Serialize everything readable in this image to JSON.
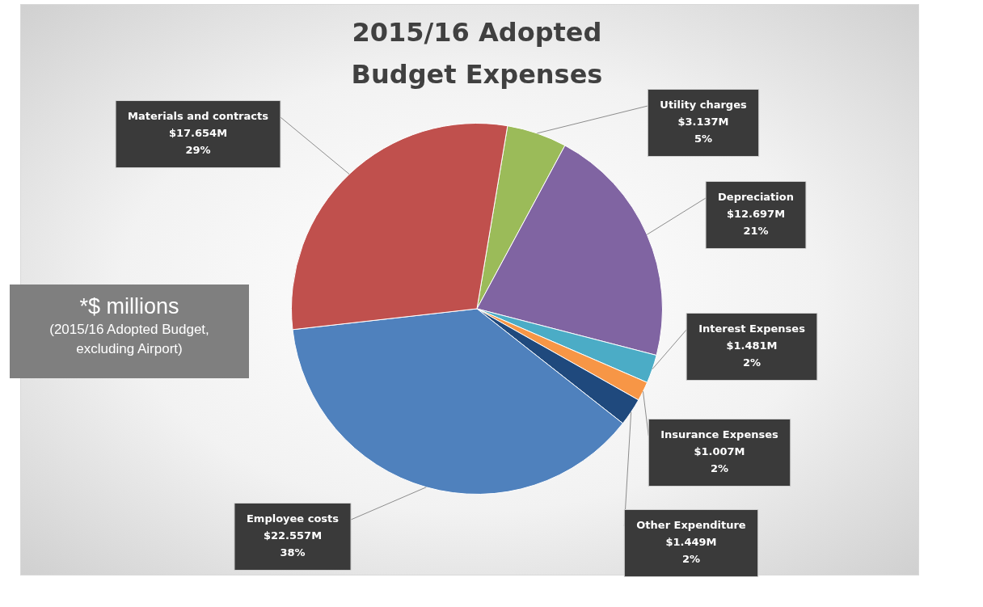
{
  "chart_data": {
    "type": "pie",
    "title": "2015/16 Adopted Budget Expenses",
    "categories": [
      "Utility charges",
      "Depreciation",
      "Interest Expenses",
      "Insurance Expenses",
      "Other Expenditure",
      "Employee costs",
      "Materials and contracts"
    ],
    "values": [
      3.137,
      12.697,
      1.481,
      1.007,
      1.449,
      22.557,
      17.654
    ],
    "colors": [
      "#9bbb59",
      "#8064a2",
      "#4bacc6",
      "#f79646",
      "#1f497d",
      "#4f81bd",
      "#c0504d"
    ],
    "value_labels": [
      "$3.137M",
      "$12.697M",
      "$1.481M",
      "$1.007M",
      "$1.449M",
      "$22.557M",
      "$17.654M"
    ],
    "legend": false,
    "annotations": [
      "*$ millions\n(2015/16 Adopted Budget,\nexcluding Airport)",
      {
        "text": "5%",
        "x": "Utility charges"
      },
      {
        "text": "21%",
        "x": "Depreciation"
      },
      {
        "text": "2%",
        "x": "Interest Expenses"
      },
      {
        "text": "2%",
        "x": "Insurance Expenses"
      },
      {
        "text": "2%",
        "x": "Other Expenditure"
      },
      {
        "text": "38%",
        "x": "Employee costs"
      },
      {
        "text": "29%",
        "x": "Materials and contracts"
      }
    ]
  }
}
